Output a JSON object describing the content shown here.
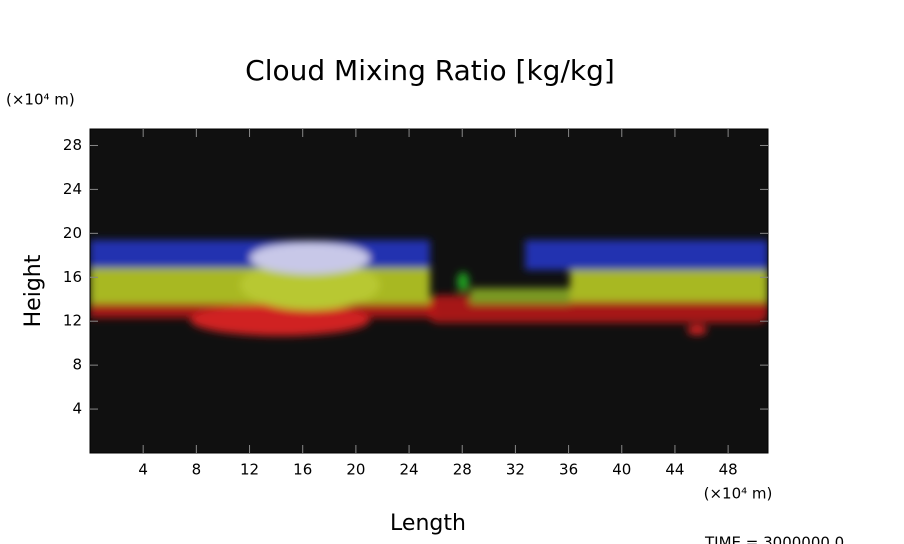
{
  "chart_data": {
    "type": "image",
    "title": "Cloud Mixing Ratio [kg/kg]",
    "x_label": "Length",
    "y_label": "Height",
    "x_unit": "(×10⁴ m)",
    "y_unit": "(×10⁴ m)",
    "footer": "TIME = 3000000.0",
    "xlim": [
      0,
      51
    ],
    "xticks": [
      4,
      8,
      12,
      16,
      20,
      24,
      28,
      32,
      36,
      40,
      44,
      48
    ],
    "ylim": [
      0,
      29.5
    ],
    "yticks": [
      4,
      8,
      12,
      16,
      20,
      24,
      28
    ]
  }
}
